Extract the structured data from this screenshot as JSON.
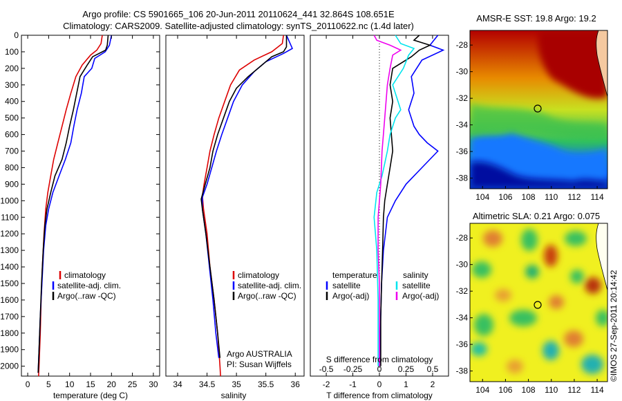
{
  "header": {
    "line1": "Argo profile: CS 5901665_106 20-Jun-2011 20110624_441 32.864S 108.651E",
    "line2": "Climatology: CARS2009. Satellite-adjusted climatology: synTS_20110622.nc (1.4d later)"
  },
  "credit": "©IMOS 27-Sep-2011 20:14:42",
  "colors": {
    "climatology": "#dd0000",
    "satellite": "#0000ff",
    "argo": "#000000",
    "sal_satellite": "#00e5ee",
    "sal_argo": "#ee00ee"
  },
  "chart_data": [
    {
      "type": "line",
      "name": "temperature-profile",
      "xlabel": "temperature (deg C)",
      "xlim": [
        -1.5,
        31.5
      ],
      "xticks": [
        "0",
        "5",
        "10",
        "15",
        "20",
        "25",
        "30"
      ],
      "ylim": [
        2060,
        0
      ],
      "yticks": [
        "0",
        "100",
        "200",
        "300",
        "400",
        "500",
        "600",
        "700",
        "800",
        "900",
        "1000",
        "1100",
        "1200",
        "1300",
        "1400",
        "1500",
        "1600",
        "1700",
        "1800",
        "1900",
        "2000"
      ],
      "legend": [
        "climatology",
        "satellite-adj. clim.",
        "Argo(..raw -QC)"
      ],
      "series": [
        {
          "key": "climatology",
          "points": [
            [
              17.8,
              0
            ],
            [
              17.5,
              50
            ],
            [
              16.5,
              90
            ],
            [
              15,
              120
            ],
            [
              13,
              180
            ],
            [
              11.5,
              250
            ],
            [
              10.3,
              350
            ],
            [
              9.2,
              450
            ],
            [
              8.2,
              550
            ],
            [
              7.2,
              650
            ],
            [
              6.2,
              750
            ],
            [
              5.5,
              850
            ],
            [
              4.8,
              950
            ],
            [
              4.3,
              1050
            ],
            [
              3.9,
              1200
            ],
            [
              3.5,
              1400
            ],
            [
              3.2,
              1600
            ],
            [
              3,
              1800
            ],
            [
              2.7,
              2000
            ],
            [
              2.6,
              2060
            ]
          ]
        },
        {
          "key": "satellite",
          "points": [
            [
              20,
              0
            ],
            [
              19.5,
              60
            ],
            [
              18.5,
              100
            ],
            [
              16,
              140
            ],
            [
              15.3,
              200
            ],
            [
              13.5,
              250
            ],
            [
              12.8,
              350
            ],
            [
              11.8,
              450
            ],
            [
              11,
              550
            ],
            [
              10.3,
              650
            ],
            [
              9,
              750
            ],
            [
              7.5,
              850
            ],
            [
              6,
              950
            ],
            [
              5,
              1050
            ],
            [
              4.3,
              1150
            ],
            [
              3.8,
              1300
            ],
            [
              3.4,
              1500
            ],
            [
              3,
              1700
            ],
            [
              2.7,
              1900
            ],
            [
              2.5,
              2040
            ]
          ]
        },
        {
          "key": "argo",
          "points": [
            [
              19.2,
              0
            ],
            [
              19,
              60
            ],
            [
              18.6,
              90
            ],
            [
              15.5,
              130
            ],
            [
              14.2,
              180
            ],
            [
              12.5,
              250
            ],
            [
              11.7,
              350
            ],
            [
              10.9,
              450
            ],
            [
              10,
              550
            ],
            [
              9.2,
              650
            ],
            [
              8.2,
              750
            ],
            [
              6.5,
              850
            ],
            [
              5.5,
              950
            ],
            [
              4.6,
              1050
            ],
            [
              4.1,
              1150
            ],
            [
              3.7,
              1300
            ],
            [
              3.3,
              1500
            ],
            [
              3,
              1700
            ],
            [
              2.7,
              1900
            ],
            [
              2.5,
              2040
            ]
          ]
        }
      ]
    },
    {
      "type": "line",
      "name": "salinity-profile",
      "xlabel": "salinity",
      "xlim": [
        33.8,
        36.15
      ],
      "xticks": [
        "34",
        "34.5",
        "35",
        "35.5",
        "36"
      ],
      "ylim": [
        2060,
        0
      ],
      "legend": [
        "climatology",
        "satellite-adj. clim.",
        "Argo(..raw -QC)"
      ],
      "annotation": [
        "Argo AUSTRALIA",
        "PI: Susan Wijffels"
      ],
      "series": [
        {
          "key": "climatology",
          "points": [
            [
              35.8,
              0
            ],
            [
              35.78,
              50
            ],
            [
              35.6,
              100
            ],
            [
              35.3,
              150
            ],
            [
              35.05,
              210
            ],
            [
              34.9,
              300
            ],
            [
              34.8,
              400
            ],
            [
              34.7,
              500
            ],
            [
              34.62,
              600
            ],
            [
              34.55,
              700
            ],
            [
              34.5,
              800
            ],
            [
              34.45,
              900
            ],
            [
              34.42,
              970
            ],
            [
              34.44,
              1050
            ],
            [
              34.5,
              1200
            ],
            [
              34.55,
              1400
            ],
            [
              34.62,
              1600
            ],
            [
              34.68,
              1800
            ],
            [
              34.72,
              2000
            ],
            [
              34.73,
              2060
            ]
          ]
        },
        {
          "key": "satellite",
          "points": [
            [
              35.85,
              0
            ],
            [
              35.95,
              80
            ],
            [
              35.8,
              110
            ],
            [
              35.5,
              160
            ],
            [
              35.3,
              220
            ],
            [
              35.1,
              300
            ],
            [
              34.95,
              400
            ],
            [
              34.85,
              500
            ],
            [
              34.75,
              600
            ],
            [
              34.66,
              700
            ],
            [
              34.58,
              800
            ],
            [
              34.5,
              900
            ],
            [
              34.42,
              980
            ],
            [
              34.42,
              1050
            ],
            [
              34.48,
              1200
            ],
            [
              34.54,
              1400
            ],
            [
              34.6,
              1600
            ],
            [
              34.65,
              1800
            ],
            [
              34.7,
              1950
            ]
          ]
        },
        {
          "key": "argo",
          "points": [
            [
              35.85,
              0
            ],
            [
              35.85,
              70
            ],
            [
              35.8,
              100
            ],
            [
              35.6,
              130
            ],
            [
              35.2,
              250
            ],
            [
              35,
              320
            ],
            [
              34.88,
              400
            ],
            [
              34.78,
              500
            ],
            [
              34.68,
              600
            ],
            [
              34.6,
              700
            ],
            [
              34.55,
              800
            ],
            [
              34.47,
              900
            ],
            [
              34.4,
              990
            ],
            [
              34.42,
              1050
            ],
            [
              34.48,
              1200
            ],
            [
              34.55,
              1400
            ],
            [
              34.62,
              1600
            ],
            [
              34.68,
              1800
            ],
            [
              34.72,
              1950
            ]
          ]
        }
      ]
    },
    {
      "type": "line",
      "name": "difference-profile",
      "xlabel": "T difference from climatology",
      "xlabel2": "S difference from climatology",
      "xlim": [
        -2.6,
        2.6
      ],
      "xticks": [
        "-2",
        "-1",
        "0",
        "1",
        "2"
      ],
      "xticks_top": [
        "-0.5",
        "-0.25",
        "0",
        "0.25",
        "0.5"
      ],
      "ylim": [
        2060,
        0
      ],
      "legend_temperature": [
        "temperature",
        "satellite",
        "Argo(-adj)"
      ],
      "legend_salinity": [
        "salinity",
        "satellite",
        "Argo(-adj)"
      ],
      "series": [
        {
          "key": "satellite",
          "points": [
            [
              2.2,
              0
            ],
            [
              1.9,
              60
            ],
            [
              2.4,
              90
            ],
            [
              1.6,
              150
            ],
            [
              1.2,
              250
            ],
            [
              1.3,
              350
            ],
            [
              1.1,
              450
            ],
            [
              1.3,
              550
            ],
            [
              1.5,
              600
            ],
            [
              1.8,
              650
            ],
            [
              2.2,
              700
            ],
            [
              1.6,
              800
            ],
            [
              1,
              900
            ],
            [
              0.6,
              1000
            ],
            [
              0.3,
              1100
            ],
            [
              0.15,
              1300
            ],
            [
              0.08,
              1500
            ],
            [
              0.05,
              1700
            ],
            [
              0,
              2000
            ]
          ]
        },
        {
          "key": "argo",
          "points": [
            [
              1.5,
              0
            ],
            [
              1.3,
              30
            ],
            [
              1.9,
              60
            ],
            [
              1.5,
              90
            ],
            [
              1.2,
              130
            ],
            [
              0.5,
              200
            ],
            [
              0.4,
              300
            ],
            [
              0.5,
              400
            ],
            [
              0.4,
              500
            ],
            [
              0.45,
              600
            ],
            [
              0.5,
              700
            ],
            [
              0.4,
              800
            ],
            [
              0.3,
              900
            ],
            [
              0.2,
              1000
            ],
            [
              0.15,
              1100
            ],
            [
              0.12,
              1300
            ],
            [
              0.08,
              1500
            ],
            [
              0.05,
              1700
            ],
            [
              0.05,
              2000
            ]
          ]
        },
        {
          "key": "sal_satellite",
          "points": [
            [
              0.6,
              0
            ],
            [
              0.8,
              50
            ],
            [
              1.3,
              80
            ],
            [
              1.1,
              120
            ],
            [
              0.9,
              200
            ],
            [
              0.5,
              300
            ],
            [
              0.8,
              450
            ],
            [
              0.6,
              500
            ],
            [
              0.4,
              600
            ],
            [
              0.3,
              700
            ],
            [
              0.1,
              850
            ],
            [
              -0.1,
              950
            ],
            [
              -0.2,
              1100
            ],
            [
              -0.1,
              1300
            ],
            [
              -0.05,
              1600
            ],
            [
              -0.05,
              2000
            ]
          ]
        },
        {
          "key": "sal_argo",
          "points": [
            [
              -0.2,
              0
            ],
            [
              -0.1,
              30
            ],
            [
              0.4,
              60
            ],
            [
              0.8,
              90
            ],
            [
              0.5,
              120
            ],
            [
              0.4,
              200
            ],
            [
              0.3,
              300
            ],
            [
              0.2,
              500
            ],
            [
              0.1,
              700
            ],
            [
              0.05,
              900
            ],
            [
              -0.05,
              1100
            ],
            [
              -0.05,
              1300
            ],
            [
              0,
              1500
            ],
            [
              0,
              1700
            ],
            [
              0,
              2000
            ]
          ]
        }
      ]
    }
  ],
  "maps": [
    {
      "title": "AMSR-E SST: 19.8 Argo: 19.2",
      "xticks": [
        "104",
        "106",
        "108",
        "110",
        "112",
        "114"
      ],
      "yticks": [
        "-28",
        "-30",
        "-32",
        "-34",
        "-36",
        "-38"
      ]
    },
    {
      "title": "Altimetric SLA: 0.21 Argo: 0.075",
      "xticks": [
        "104",
        "106",
        "108",
        "110",
        "112",
        "114"
      ],
      "yticks": [
        "-28",
        "-30",
        "-32",
        "-34",
        "-36",
        "-38"
      ]
    }
  ]
}
